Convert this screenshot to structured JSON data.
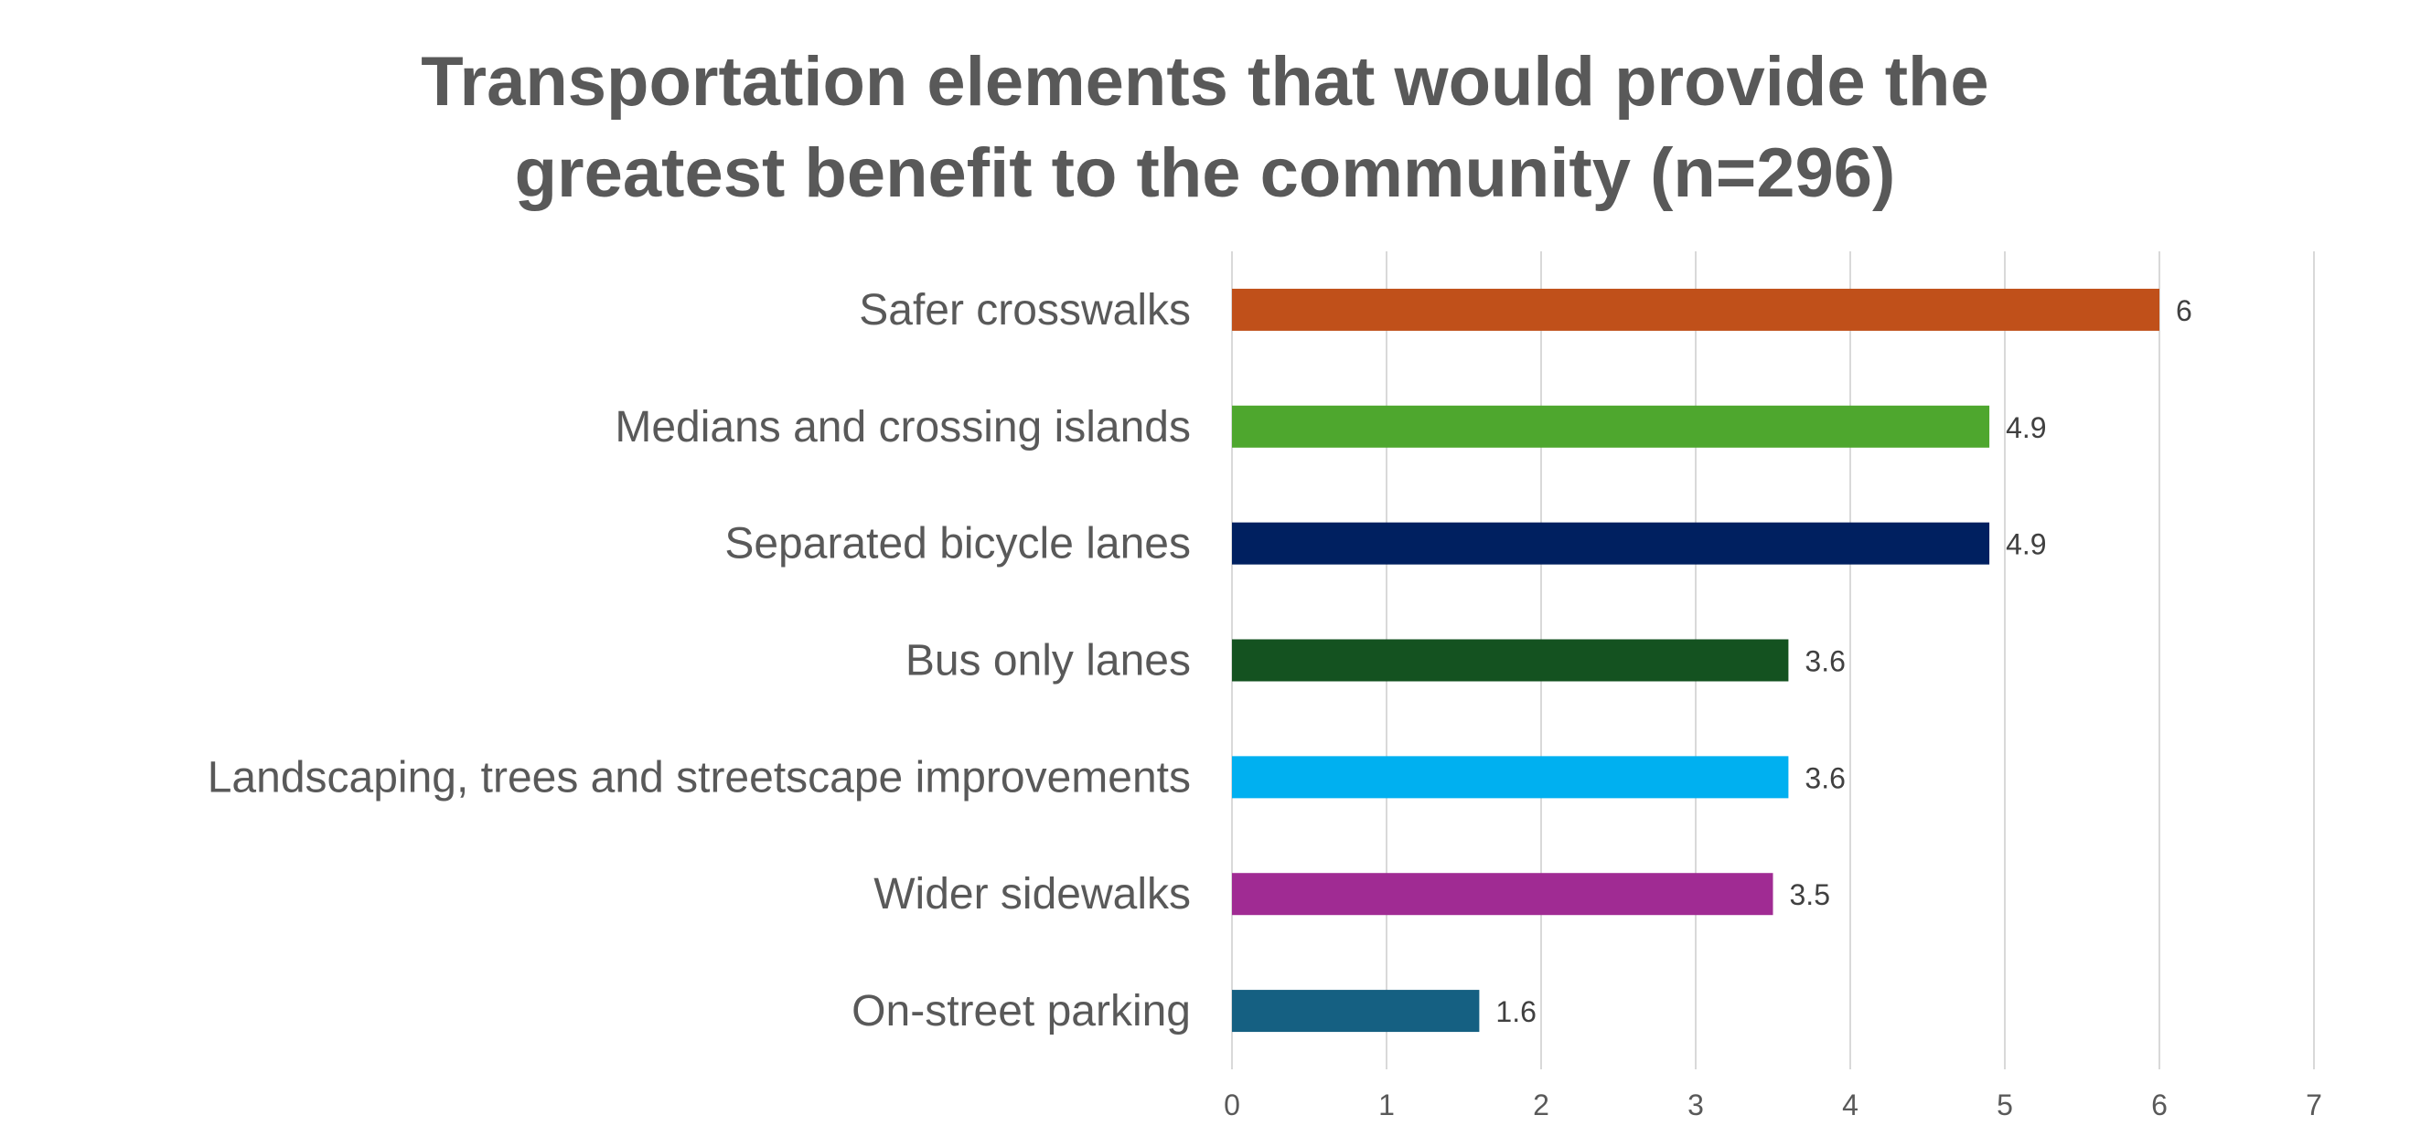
{
  "chart_data": {
    "type": "bar",
    "orientation": "horizontal",
    "title_lines": [
      "Transportation elements that would provide the",
      "greatest benefit to the community (n=296)"
    ],
    "categories": [
      "Safer crosswalks",
      "Medians and crossing islands",
      "Separated bicycle lanes",
      "Bus only lanes",
      "Landscaping, trees and streetscape improvements",
      "Wider sidewalks",
      "On-street parking"
    ],
    "values": [
      6,
      4.9,
      4.9,
      3.6,
      3.6,
      3.5,
      1.6
    ],
    "data_labels": [
      "6",
      "4.9",
      "4.9",
      "3.6",
      "3.6",
      "3.5",
      "1.6"
    ],
    "colors": [
      "#c0501a",
      "#4ea72e",
      "#002060",
      "#145220",
      "#00b0f0",
      "#a02b93",
      "#156082"
    ],
    "xlim": [
      0,
      7
    ],
    "x_ticks": [
      0,
      1,
      2,
      3,
      4,
      5,
      6,
      7
    ],
    "xlabel": "",
    "ylabel": "",
    "grid": true,
    "legend": "none"
  }
}
